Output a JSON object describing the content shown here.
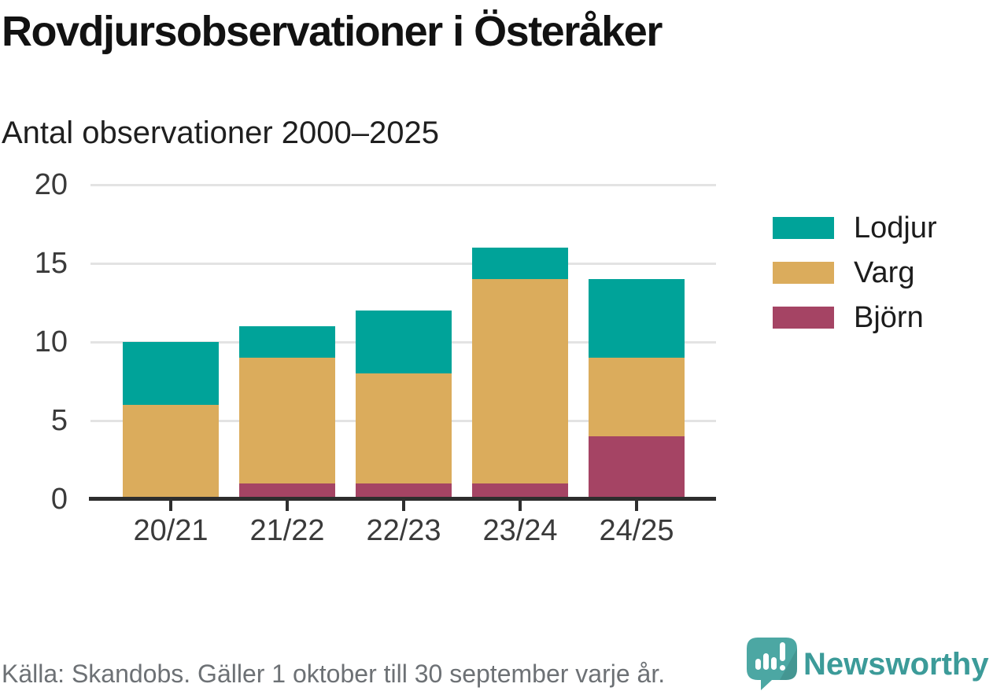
{
  "header": {
    "title": "Rovdjursobservationer i Österåker",
    "subtitle": "Antal observationer 2000–2025"
  },
  "chart_data": {
    "type": "bar",
    "stacked": true,
    "title": "Rovdjursobservationer i Österåker",
    "subtitle": "Antal observationer 2000–2025",
    "categories": [
      "20/21",
      "21/22",
      "22/23",
      "23/24",
      "24/25"
    ],
    "series": [
      {
        "name": "Lodjur",
        "color": "#00A399",
        "values": [
          4,
          2,
          4,
          2,
          5
        ]
      },
      {
        "name": "Varg",
        "color": "#DBAC5C",
        "values": [
          6,
          8,
          7,
          13,
          5
        ]
      },
      {
        "name": "Björn",
        "color": "#A54464",
        "values": [
          0,
          1,
          1,
          1,
          4
        ]
      }
    ],
    "stack_order_bottom_to_top": [
      "Björn",
      "Varg",
      "Lodjur"
    ],
    "totals": [
      10,
      11,
      12,
      16,
      14
    ],
    "xlabel": "",
    "ylabel": "",
    "ylim": [
      0,
      20
    ],
    "yticks": [
      0,
      5,
      10,
      15,
      20
    ],
    "grid": "horizontal",
    "legend_position": "right"
  },
  "footer": {
    "source": "Källa: Skandobs. Gäller 1 oktober till 30 september varje år.",
    "brand": "Newsworthy"
  },
  "colors": {
    "lodjur": "#00A399",
    "varg": "#DBAC5C",
    "bjorn": "#A54464",
    "axis_line": "#2E2E2E",
    "gridline": "#E3E3E3",
    "title_text": "#121212",
    "axis_text": "#3A3A3A",
    "source_text": "#6D7175",
    "brand_teal": "#3C9B99",
    "logo_bubble": "#4CA7A3",
    "background": "#FFFFFF"
  }
}
